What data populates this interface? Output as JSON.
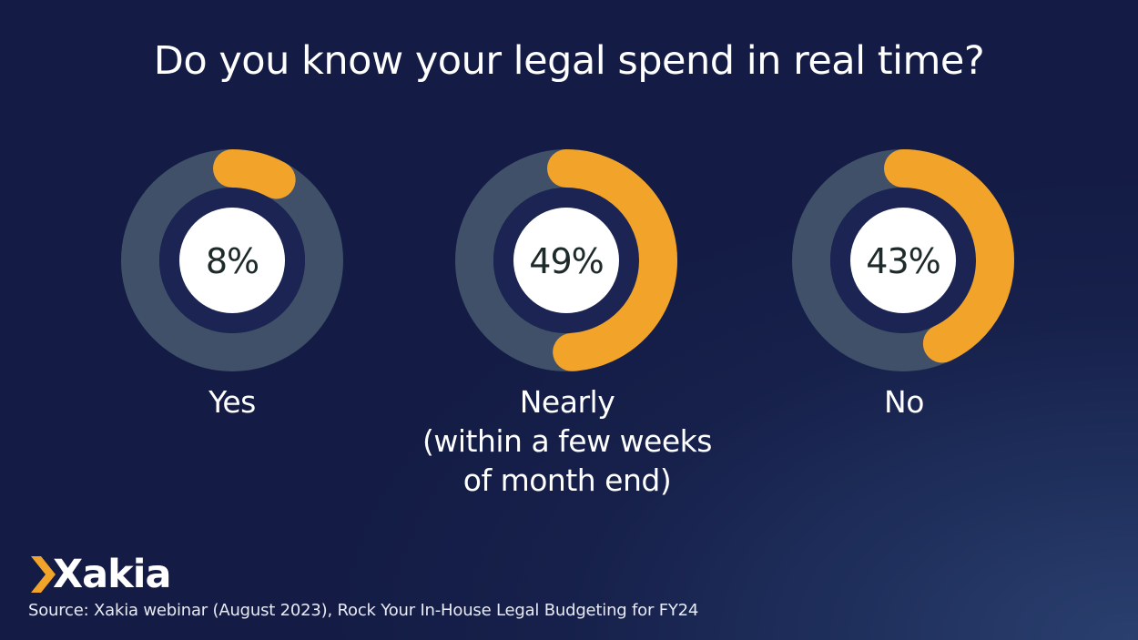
{
  "title": "Do you know your legal spend in real time?",
  "chart_data": {
    "type": "donut",
    "title": "Do you know your legal spend in real time?",
    "categories": [
      "Yes",
      "Nearly (within a few weeks of month end)",
      "No"
    ],
    "values": [
      8,
      49,
      43
    ],
    "unit": "%",
    "items": [
      {
        "value": 8,
        "display": "8%",
        "label_lines": [
          "Yes"
        ]
      },
      {
        "value": 49,
        "display": "49%",
        "label_lines": [
          "Nearly",
          "(within a few weeks",
          "of month end)"
        ]
      },
      {
        "value": 43,
        "display": "43%",
        "label_lines": [
          "No"
        ]
      }
    ]
  },
  "colors": {
    "accent": "#f2a32a",
    "ring_track": "#3f5068",
    "inner_ring": "#1b2452",
    "center": "#ffffff",
    "value_text": "#1e2a2a"
  },
  "logo": {
    "text": "Xakia",
    "icon": "chevron-icon"
  },
  "source": "Source: Xakia webinar (August 2023), Rock Your In-House Legal Budgeting for FY24"
}
